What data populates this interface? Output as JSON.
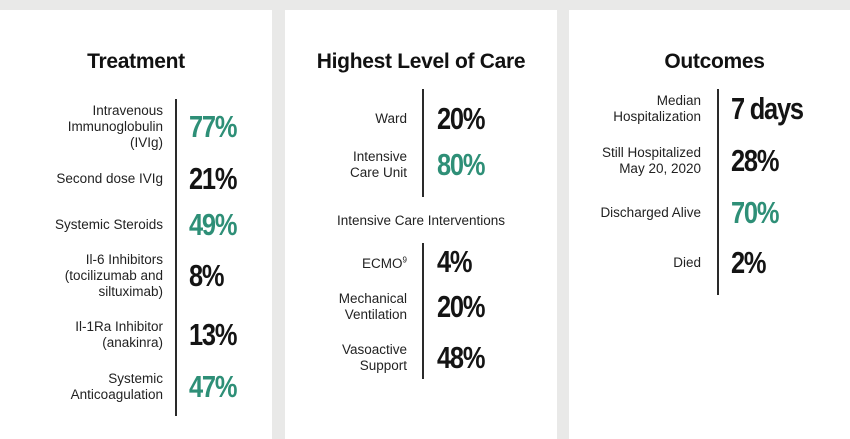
{
  "treatment": {
    "title": "Treatment",
    "items": [
      {
        "label": "Intravenous\nImmunoglobulin\n(IVIg)",
        "value": "77%",
        "color": "#2e8f77"
      },
      {
        "label": "Second dose IVIg",
        "value": "21%",
        "color": "#141414"
      },
      {
        "label": "Systemic Steroids",
        "value": "49%",
        "color": "#2e8f77"
      },
      {
        "label": "Il-6 Inhibitors\n(tocilizumab and\nsiltuximab)",
        "value": "8%",
        "color": "#141414"
      },
      {
        "label": "Il-1Ra Inhibitor\n(anakinra)",
        "value": "13%",
        "color": "#141414"
      },
      {
        "label": "Systemic\nAnticoagulation",
        "value": "47%",
        "color": "#2e8f77"
      }
    ]
  },
  "care": {
    "title": "Highest Level of Care",
    "items": [
      {
        "label": "Ward",
        "value": "20%",
        "color": "#141414"
      },
      {
        "label": "Intensive\nCare Unit",
        "value": "80%",
        "color": "#2e8f77"
      }
    ],
    "interventions_title": "Intensive Care Interventions",
    "interventions": [
      {
        "label": "ECMO",
        "superscript": "9",
        "value": "4%",
        "color": "#141414"
      },
      {
        "label": "Mechanical\nVentilation",
        "value": "20%",
        "color": "#141414"
      },
      {
        "label": "Vasoactive\nSupport",
        "value": "48%",
        "color": "#141414"
      }
    ]
  },
  "outcomes": {
    "title": "Outcomes",
    "items": [
      {
        "label": "Median\nHospitalization",
        "value": "7 days",
        "color": "#141414"
      },
      {
        "label": "Still Hospitalized\nMay 20, 2020",
        "value": "28%",
        "color": "#141414"
      },
      {
        "label": "Discharged Alive",
        "value": "70%",
        "color": "#2e8f77"
      },
      {
        "label": "Died",
        "value": "2%",
        "color": "#141414"
      }
    ]
  }
}
